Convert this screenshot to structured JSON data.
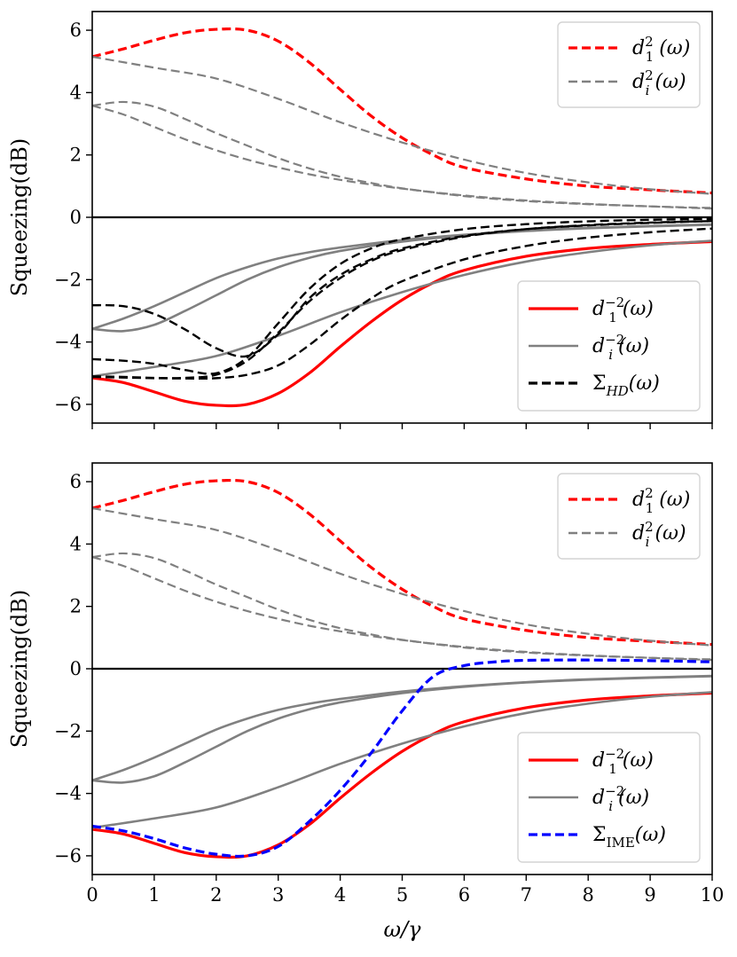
{
  "chart_data": [
    {
      "type": "line",
      "ylabel": "Squeezing(dB)",
      "xlabel": "",
      "xlim": [
        0,
        10
      ],
      "ylim": [
        -6.6,
        6.6
      ],
      "xticks": [
        0,
        1,
        2,
        3,
        4,
        5,
        6,
        7,
        8,
        9,
        10
      ],
      "show_xtick_labels": false,
      "yticks": [
        -6,
        -4,
        -2,
        0,
        2,
        4,
        6
      ],
      "ytick_labels": [
        "−6",
        "−4",
        "−2",
        "0",
        "2",
        "4",
        "6"
      ],
      "grid": false,
      "zero_line": true,
      "legends": [
        {
          "placement": "top-right",
          "entries": [
            {
              "label": "d₁²(ω)",
              "color": "#ff0000",
              "dash": "dashed"
            },
            {
              "label": "dᵢ²(ω)",
              "color": "#808080",
              "dash": "dashed"
            }
          ]
        },
        {
          "placement": "lower-right",
          "entries": [
            {
              "label": "d₁⁻²(ω)",
              "color": "#ff0000",
              "dash": "solid"
            },
            {
              "label": "dᵢ⁻²(ω)",
              "color": "#808080",
              "dash": "solid"
            },
            {
              "label": "Σ_HD(ω)",
              "color": "#000000",
              "dash": "dashed"
            }
          ]
        }
      ],
      "series": [
        {
          "color": "#ff0000",
          "dash": "dashed",
          "width": 3.2,
          "x": [
            0,
            0.5,
            1,
            1.5,
            2,
            2.5,
            3,
            3.5,
            4,
            4.5,
            5,
            5.5,
            6,
            7,
            8,
            9,
            10
          ],
          "values": [
            5.15,
            5.4,
            5.68,
            5.92,
            6.03,
            6.0,
            5.65,
            4.97,
            4.1,
            3.25,
            2.55,
            2.0,
            1.6,
            1.23,
            1.0,
            0.88,
            0.78
          ]
        },
        {
          "color": "#808080",
          "dash": "dashed",
          "width": 2.2,
          "x": [
            0,
            1,
            2,
            3,
            4,
            5,
            6,
            7,
            8,
            9,
            10
          ],
          "values": [
            5.15,
            4.8,
            4.45,
            3.8,
            3.05,
            2.4,
            1.85,
            1.42,
            1.12,
            0.9,
            0.75
          ]
        },
        {
          "color": "#808080",
          "dash": "dashed",
          "width": 2.2,
          "x": [
            0,
            0.5,
            1,
            1.5,
            2,
            2.5,
            3,
            3.5,
            4,
            4.5,
            5,
            6,
            7,
            8,
            9,
            10
          ],
          "values": [
            3.58,
            3.7,
            3.55,
            3.15,
            2.7,
            2.3,
            1.9,
            1.57,
            1.3,
            1.1,
            0.93,
            0.68,
            0.52,
            0.42,
            0.35,
            0.3
          ]
        },
        {
          "color": "#808080",
          "dash": "dashed",
          "width": 2.2,
          "x": [
            0,
            0.5,
            1,
            1.5,
            2,
            2.5,
            3,
            3.5,
            4,
            4.5,
            5,
            6,
            7,
            8,
            9,
            10
          ],
          "values": [
            3.58,
            3.3,
            2.9,
            2.5,
            2.15,
            1.85,
            1.6,
            1.38,
            1.2,
            1.05,
            0.92,
            0.7,
            0.54,
            0.43,
            0.35,
            0.28
          ]
        },
        {
          "color": "#ff0000",
          "dash": "solid",
          "width": 3.2,
          "x": [
            0,
            0.5,
            1,
            1.5,
            2,
            2.5,
            3,
            3.5,
            4,
            4.5,
            5,
            5.5,
            6,
            7,
            8,
            9,
            10
          ],
          "values": [
            -5.15,
            -5.3,
            -5.6,
            -5.9,
            -6.03,
            -6.0,
            -5.65,
            -5.0,
            -4.15,
            -3.35,
            -2.65,
            -2.1,
            -1.7,
            -1.25,
            -1.0,
            -0.87,
            -0.78
          ]
        },
        {
          "color": "#808080",
          "dash": "solid",
          "width": 2.6,
          "x": [
            0,
            1,
            2,
            3,
            4,
            5,
            6,
            7,
            8,
            9,
            10
          ],
          "values": [
            -5.1,
            -4.8,
            -4.45,
            -3.8,
            -3.05,
            -2.4,
            -1.85,
            -1.42,
            -1.12,
            -0.9,
            -0.75
          ]
        },
        {
          "color": "#808080",
          "dash": "solid",
          "width": 2.6,
          "x": [
            0,
            0.5,
            1,
            1.5,
            2,
            2.5,
            3,
            3.5,
            4,
            5,
            6,
            7,
            8,
            9,
            10
          ],
          "values": [
            -3.58,
            -3.65,
            -3.45,
            -3.0,
            -2.5,
            -2.0,
            -1.6,
            -1.3,
            -1.08,
            -0.78,
            -0.58,
            -0.44,
            -0.35,
            -0.29,
            -0.24
          ]
        },
        {
          "color": "#808080",
          "dash": "solid",
          "width": 2.6,
          "x": [
            0,
            0.5,
            1,
            1.5,
            2,
            2.5,
            3,
            3.5,
            4,
            5,
            6,
            7,
            8,
            9,
            10
          ],
          "values": [
            -3.58,
            -3.25,
            -2.85,
            -2.4,
            -1.95,
            -1.6,
            -1.32,
            -1.12,
            -0.97,
            -0.73,
            -0.56,
            -0.43,
            -0.34,
            -0.28,
            -0.23
          ]
        },
        {
          "color": "#000000",
          "dash": "dashed",
          "width": 2.4,
          "x": [
            0,
            0.5,
            1,
            1.5,
            2,
            2.5,
            3,
            3.5,
            4,
            4.5,
            5,
            6,
            7,
            8,
            9,
            10
          ],
          "values": [
            -2.82,
            -2.85,
            -3.1,
            -3.6,
            -4.2,
            -4.45,
            -3.75,
            -2.6,
            -1.85,
            -1.35,
            -1.0,
            -0.6,
            -0.38,
            -0.26,
            -0.18,
            -0.12
          ]
        },
        {
          "color": "#000000",
          "dash": "dashed",
          "width": 2.4,
          "x": [
            0,
            0.5,
            1,
            1.5,
            2,
            2.5,
            3,
            3.5,
            4,
            4.5,
            5,
            6,
            7,
            8,
            9,
            10
          ],
          "values": [
            -4.55,
            -4.6,
            -4.7,
            -4.9,
            -5.0,
            -4.5,
            -3.4,
            -2.3,
            -1.5,
            -1.0,
            -0.7,
            -0.38,
            -0.22,
            -0.13,
            -0.08,
            -0.05
          ]
        },
        {
          "color": "#000000",
          "dash": "dashed",
          "width": 2.4,
          "x": [
            0,
            0.5,
            1,
            1.5,
            2,
            2.5,
            3,
            3.5,
            4,
            4.5,
            5,
            6,
            7,
            8,
            9,
            10
          ],
          "values": [
            -5.1,
            -5.12,
            -5.15,
            -5.15,
            -5.05,
            -4.6,
            -3.7,
            -2.7,
            -1.95,
            -1.4,
            -1.05,
            -0.62,
            -0.38,
            -0.25,
            -0.17,
            -0.12
          ]
        },
        {
          "color": "#000000",
          "dash": "dashed",
          "width": 2.4,
          "x": [
            0,
            0.5,
            1,
            1.5,
            2,
            2.5,
            3,
            3.5,
            4,
            4.5,
            5,
            6,
            7,
            8,
            9,
            10
          ],
          "values": [
            -5.12,
            -5.14,
            -5.16,
            -5.17,
            -5.16,
            -5.05,
            -4.75,
            -4.1,
            -3.3,
            -2.6,
            -2.05,
            -1.35,
            -0.92,
            -0.65,
            -0.48,
            -0.36
          ]
        }
      ]
    },
    {
      "type": "line",
      "ylabel": "Squeezing(dB)",
      "xlabel": "ω/γ",
      "xlim": [
        0,
        10
      ],
      "ylim": [
        -6.6,
        6.6
      ],
      "xticks": [
        0,
        1,
        2,
        3,
        4,
        5,
        6,
        7,
        8,
        9,
        10
      ],
      "show_xtick_labels": true,
      "xtick_labels": [
        "0",
        "1",
        "2",
        "3",
        "4",
        "5",
        "6",
        "7",
        "8",
        "9",
        "10"
      ],
      "yticks": [
        -6,
        -4,
        -2,
        0,
        2,
        4,
        6
      ],
      "ytick_labels": [
        "−6",
        "−4",
        "−2",
        "0",
        "2",
        "4",
        "6"
      ],
      "grid": false,
      "zero_line": true,
      "legends": [
        {
          "placement": "top-right",
          "entries": [
            {
              "label": "d₁²(ω)",
              "color": "#ff0000",
              "dash": "dashed"
            },
            {
              "label": "dᵢ²(ω)",
              "color": "#808080",
              "dash": "dashed"
            }
          ]
        },
        {
          "placement": "lower-right",
          "entries": [
            {
              "label": "d₁⁻²(ω)",
              "color": "#ff0000",
              "dash": "solid"
            },
            {
              "label": "dᵢ⁻²(ω)",
              "color": "#808080",
              "dash": "solid"
            },
            {
              "label": "Σ_IME(ω)",
              "color": "#0000ff",
              "dash": "dashed"
            }
          ]
        }
      ],
      "series": [
        {
          "color": "#ff0000",
          "dash": "dashed",
          "width": 3.2,
          "x": [
            0,
            0.5,
            1,
            1.5,
            2,
            2.5,
            3,
            3.5,
            4,
            4.5,
            5,
            5.5,
            6,
            7,
            8,
            9,
            10
          ],
          "values": [
            5.15,
            5.4,
            5.68,
            5.92,
            6.03,
            6.0,
            5.65,
            4.97,
            4.1,
            3.25,
            2.55,
            2.0,
            1.6,
            1.23,
            1.0,
            0.88,
            0.78
          ]
        },
        {
          "color": "#808080",
          "dash": "dashed",
          "width": 2.2,
          "x": [
            0,
            1,
            2,
            3,
            4,
            5,
            6,
            7,
            8,
            9,
            10
          ],
          "values": [
            5.15,
            4.8,
            4.45,
            3.8,
            3.05,
            2.4,
            1.85,
            1.42,
            1.12,
            0.9,
            0.75
          ]
        },
        {
          "color": "#808080",
          "dash": "dashed",
          "width": 2.2,
          "x": [
            0,
            0.5,
            1,
            1.5,
            2,
            2.5,
            3,
            3.5,
            4,
            4.5,
            5,
            6,
            7,
            8,
            9,
            10
          ],
          "values": [
            3.58,
            3.7,
            3.55,
            3.15,
            2.7,
            2.3,
            1.9,
            1.57,
            1.3,
            1.1,
            0.93,
            0.68,
            0.52,
            0.42,
            0.35,
            0.3
          ]
        },
        {
          "color": "#808080",
          "dash": "dashed",
          "width": 2.2,
          "x": [
            0,
            0.5,
            1,
            1.5,
            2,
            2.5,
            3,
            3.5,
            4,
            4.5,
            5,
            6,
            7,
            8,
            9,
            10
          ],
          "values": [
            3.58,
            3.3,
            2.9,
            2.5,
            2.15,
            1.85,
            1.6,
            1.38,
            1.2,
            1.05,
            0.92,
            0.7,
            0.54,
            0.43,
            0.35,
            0.28
          ]
        },
        {
          "color": "#ff0000",
          "dash": "solid",
          "width": 3.2,
          "x": [
            0,
            0.5,
            1,
            1.5,
            2,
            2.5,
            3,
            3.5,
            4,
            4.5,
            5,
            5.5,
            6,
            7,
            8,
            9,
            10
          ],
          "values": [
            -5.15,
            -5.3,
            -5.6,
            -5.9,
            -6.03,
            -6.0,
            -5.65,
            -5.0,
            -4.15,
            -3.35,
            -2.65,
            -2.1,
            -1.7,
            -1.25,
            -1.0,
            -0.87,
            -0.78
          ]
        },
        {
          "color": "#808080",
          "dash": "solid",
          "width": 2.6,
          "x": [
            0,
            1,
            2,
            3,
            4,
            5,
            6,
            7,
            8,
            9,
            10
          ],
          "values": [
            -5.1,
            -4.8,
            -4.45,
            -3.8,
            -3.05,
            -2.4,
            -1.85,
            -1.42,
            -1.12,
            -0.9,
            -0.75
          ]
        },
        {
          "color": "#808080",
          "dash": "solid",
          "width": 2.6,
          "x": [
            0,
            0.5,
            1,
            1.5,
            2,
            2.5,
            3,
            3.5,
            4,
            5,
            6,
            7,
            8,
            9,
            10
          ],
          "values": [
            -3.58,
            -3.65,
            -3.45,
            -3.0,
            -2.5,
            -2.0,
            -1.6,
            -1.3,
            -1.08,
            -0.78,
            -0.58,
            -0.44,
            -0.35,
            -0.29,
            -0.24
          ]
        },
        {
          "color": "#808080",
          "dash": "solid",
          "width": 2.6,
          "x": [
            0,
            0.5,
            1,
            1.5,
            2,
            2.5,
            3,
            3.5,
            4,
            5,
            6,
            7,
            8,
            9,
            10
          ],
          "values": [
            -3.58,
            -3.25,
            -2.85,
            -2.4,
            -1.95,
            -1.6,
            -1.32,
            -1.12,
            -0.97,
            -0.73,
            -0.56,
            -0.43,
            -0.34,
            -0.28,
            -0.23
          ]
        },
        {
          "color": "#0000ff",
          "dash": "dashed",
          "width": 3.2,
          "x": [
            0,
            0.5,
            1,
            1.5,
            2,
            2.5,
            3,
            3.5,
            4,
            4.5,
            5,
            5.5,
            6,
            6.5,
            7,
            8,
            9,
            10
          ],
          "values": [
            -5.05,
            -5.2,
            -5.45,
            -5.75,
            -5.95,
            -6.0,
            -5.7,
            -4.9,
            -3.9,
            -2.7,
            -1.35,
            -0.25,
            0.1,
            0.22,
            0.27,
            0.28,
            0.26,
            0.22
          ]
        }
      ]
    }
  ]
}
